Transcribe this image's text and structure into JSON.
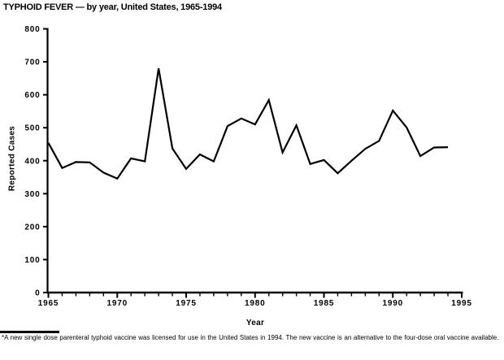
{
  "title": "TYPHOID FEVER — by year, United States, 1965-1994",
  "footnote": {
    "marker": "*",
    "text": "A new single dose parenteral typhoid vaccine was licensed for use in the United States in 1994. The new vaccine is an alternative to the four-dose oral vaccine available."
  },
  "colors": {
    "ink": "#000000",
    "background": "#ffffff"
  },
  "chart_data": {
    "type": "line",
    "title": "TYPHOID FEVER — by year, United States, 1965-1994",
    "xlabel": "Year",
    "ylabel": "Reported Cases",
    "x": [
      1965,
      1966,
      1967,
      1968,
      1969,
      1970,
      1971,
      1972,
      1973,
      1974,
      1975,
      1976,
      1977,
      1978,
      1979,
      1980,
      1981,
      1982,
      1983,
      1984,
      1985,
      1986,
      1987,
      1988,
      1989,
      1990,
      1991,
      1992,
      1993,
      1994
    ],
    "values": [
      454,
      378,
      396,
      395,
      364,
      346,
      407,
      398,
      680,
      437,
      375,
      419,
      398,
      505,
      528,
      510,
      584,
      425,
      507,
      390,
      402,
      362,
      400,
      436,
      460,
      552,
      501,
      414,
      440,
      441
    ],
    "xlim": [
      1965,
      1995
    ],
    "ylim": [
      0,
      800
    ],
    "y_ticks": [
      0,
      100,
      200,
      300,
      400,
      500,
      600,
      700,
      800
    ],
    "x_major_ticks": [
      1965,
      1970,
      1975,
      1980,
      1985,
      1990,
      1995
    ],
    "x_minor_step": 1,
    "grid": false,
    "legend": false,
    "line_color": "#000000"
  }
}
